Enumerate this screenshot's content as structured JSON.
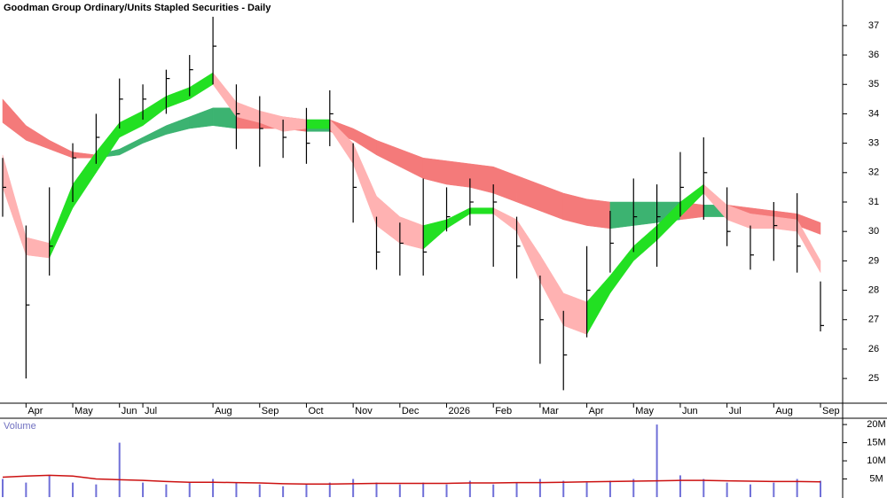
{
  "chart_data": [
    {
      "type": "hlc",
      "title": "Goodman Group Ordinary/Units Stapled Securities - Daily",
      "categories": [
        null,
        "Apr",
        null,
        "May",
        null,
        "Jun",
        "Jul",
        null,
        null,
        "Aug",
        null,
        "Sep",
        null,
        "Oct",
        null,
        "Nov",
        null,
        "Dec",
        null,
        "2026",
        null,
        "Feb",
        null,
        "Mar",
        null,
        "Apr",
        null,
        "May",
        null,
        "Jun",
        null,
        "Jul",
        null,
        "Aug",
        null,
        "Sep"
      ],
      "high": [
        32.5,
        30.2,
        31.5,
        33,
        34,
        35.2,
        35,
        35.5,
        36,
        37.3,
        35,
        34.6,
        33.8,
        34.2,
        34.8,
        33,
        30.5,
        30.3,
        31.8,
        31.5,
        31.8,
        31.6,
        30.5,
        28.5,
        27.3,
        29.5,
        30.7,
        31.8,
        31.6,
        32.7,
        33.2,
        31.5,
        30.2,
        31,
        31.3,
        28.3
      ],
      "low": [
        30.5,
        25,
        28.5,
        31,
        32.3,
        33.5,
        33.8,
        34,
        34.6,
        35,
        32.8,
        32.2,
        32.5,
        32.3,
        32.9,
        30.3,
        28.7,
        28.5,
        28.5,
        30,
        30.2,
        28.8,
        28.4,
        25.5,
        24.6,
        26.4,
        28.6,
        29.3,
        28.8,
        30.5,
        30.4,
        29.5,
        28.7,
        29,
        28.6,
        26.6
      ],
      "close": [
        31.5,
        27.5,
        29.5,
        32.5,
        33.2,
        34.5,
        34.5,
        35.2,
        35.5,
        36.3,
        34,
        33.5,
        33.2,
        33,
        34,
        31.5,
        29.3,
        29.6,
        29.3,
        30.5,
        31,
        31,
        29.5,
        27,
        25.8,
        28,
        29.6,
        30.5,
        30.5,
        31.5,
        32,
        30,
        29.2,
        30.2,
        29.5,
        26.8
      ],
      "color": "#000000",
      "bands": [
        {
          "upper": [
            34.5,
            33.6,
            33.1,
            32.7,
            32.6,
            32.8,
            33.2,
            33.6,
            33.9,
            34.2,
            34.2,
            34,
            33.9,
            33.8,
            33.8,
            33.5,
            33.1,
            32.8,
            32.5,
            32.4,
            32.3,
            32.2,
            31.9,
            31.6,
            31.3,
            31.1,
            31,
            31,
            31,
            31,
            30.9,
            30.9,
            30.8,
            30.7,
            30.6,
            30.3
          ],
          "lower": [
            33.7,
            33.1,
            32.8,
            32.5,
            32.5,
            32.6,
            33,
            33.3,
            33.5,
            33.6,
            33.5,
            33.5,
            33.5,
            33.4,
            33.4,
            33.1,
            32.6,
            32.2,
            31.8,
            31.6,
            31.5,
            31.3,
            31,
            30.7,
            30.4,
            30.2,
            30.1,
            30.2,
            30.3,
            30.4,
            30.5,
            30.5,
            30.4,
            30.3,
            30.2,
            29.9
          ],
          "up_color": "#3cb371",
          "down_color": "#f47a7a"
        },
        {
          "upper": [
            32.6,
            29.8,
            29.6,
            31.6,
            32.7,
            33.7,
            34.1,
            34.6,
            34.9,
            35.4,
            34.4,
            34.1,
            33.9,
            33.8,
            33.8,
            33,
            31.2,
            30.5,
            30.2,
            30.4,
            30.8,
            30.8,
            30.4,
            29.2,
            27.9,
            27.6,
            28.5,
            29.5,
            30.2,
            31,
            31.6,
            30.9,
            30.6,
            30.5,
            30.4,
            29
          ],
          "lower": [
            31.5,
            29.2,
            29.1,
            30.8,
            32,
            33.2,
            33.6,
            34.2,
            34.5,
            35,
            33.9,
            33.7,
            33.4,
            33.5,
            33.5,
            32.3,
            30.2,
            29.6,
            29.4,
            30.1,
            30.6,
            30.6,
            30,
            28.3,
            26.8,
            26.5,
            27.9,
            29,
            29.7,
            30.5,
            31.3,
            30.4,
            30.1,
            30.1,
            30,
            28.6
          ],
          "up_color": "#22e022",
          "down_color": "#ffb2b2"
        }
      ],
      "ylim": [
        24.16,
        37.87
      ],
      "yticks": [
        25,
        26,
        27,
        28,
        29,
        30,
        31,
        32,
        33,
        34,
        35,
        36,
        37
      ]
    },
    {
      "type": "bar",
      "title": "Volume",
      "values": [
        5000000,
        4000000,
        6000000,
        4000000,
        3500000,
        15000000,
        4000000,
        3500000,
        4000000,
        5000000,
        4000000,
        3500000,
        3000000,
        3500000,
        4000000,
        5000000,
        4000000,
        3500000,
        4000000,
        3500000,
        4500000,
        3500000,
        4000000,
        5000000,
        4500000,
        4000000,
        4500000,
        5000000,
        20000000,
        6000000,
        5000000,
        4000000,
        3500000,
        4000000,
        5000000,
        4500000
      ],
      "color": "#7070d8",
      "moving_average": {
        "values": [
          5500000,
          5800000,
          6000000,
          5800000,
          5000000,
          4800000,
          4600000,
          4300000,
          4100000,
          4100000,
          4000000,
          3900000,
          3700000,
          3600000,
          3600000,
          3700000,
          3800000,
          3800000,
          3800000,
          3800000,
          3900000,
          3900000,
          4000000,
          4000000,
          4100000,
          4200000,
          4300000,
          4400000,
          4500000,
          4600000,
          4600000,
          4500000,
          4400000,
          4300000,
          4300000,
          4200000
        ],
        "color": "#cc1111"
      },
      "ylim": [
        0,
        21000000
      ],
      "yticks": [
        {
          "value": 5000000,
          "label": "5M"
        },
        {
          "value": 10000000,
          "label": "10M"
        },
        {
          "value": 15000000,
          "label": "15M"
        },
        {
          "value": 20000000,
          "label": "20M"
        }
      ]
    }
  ]
}
